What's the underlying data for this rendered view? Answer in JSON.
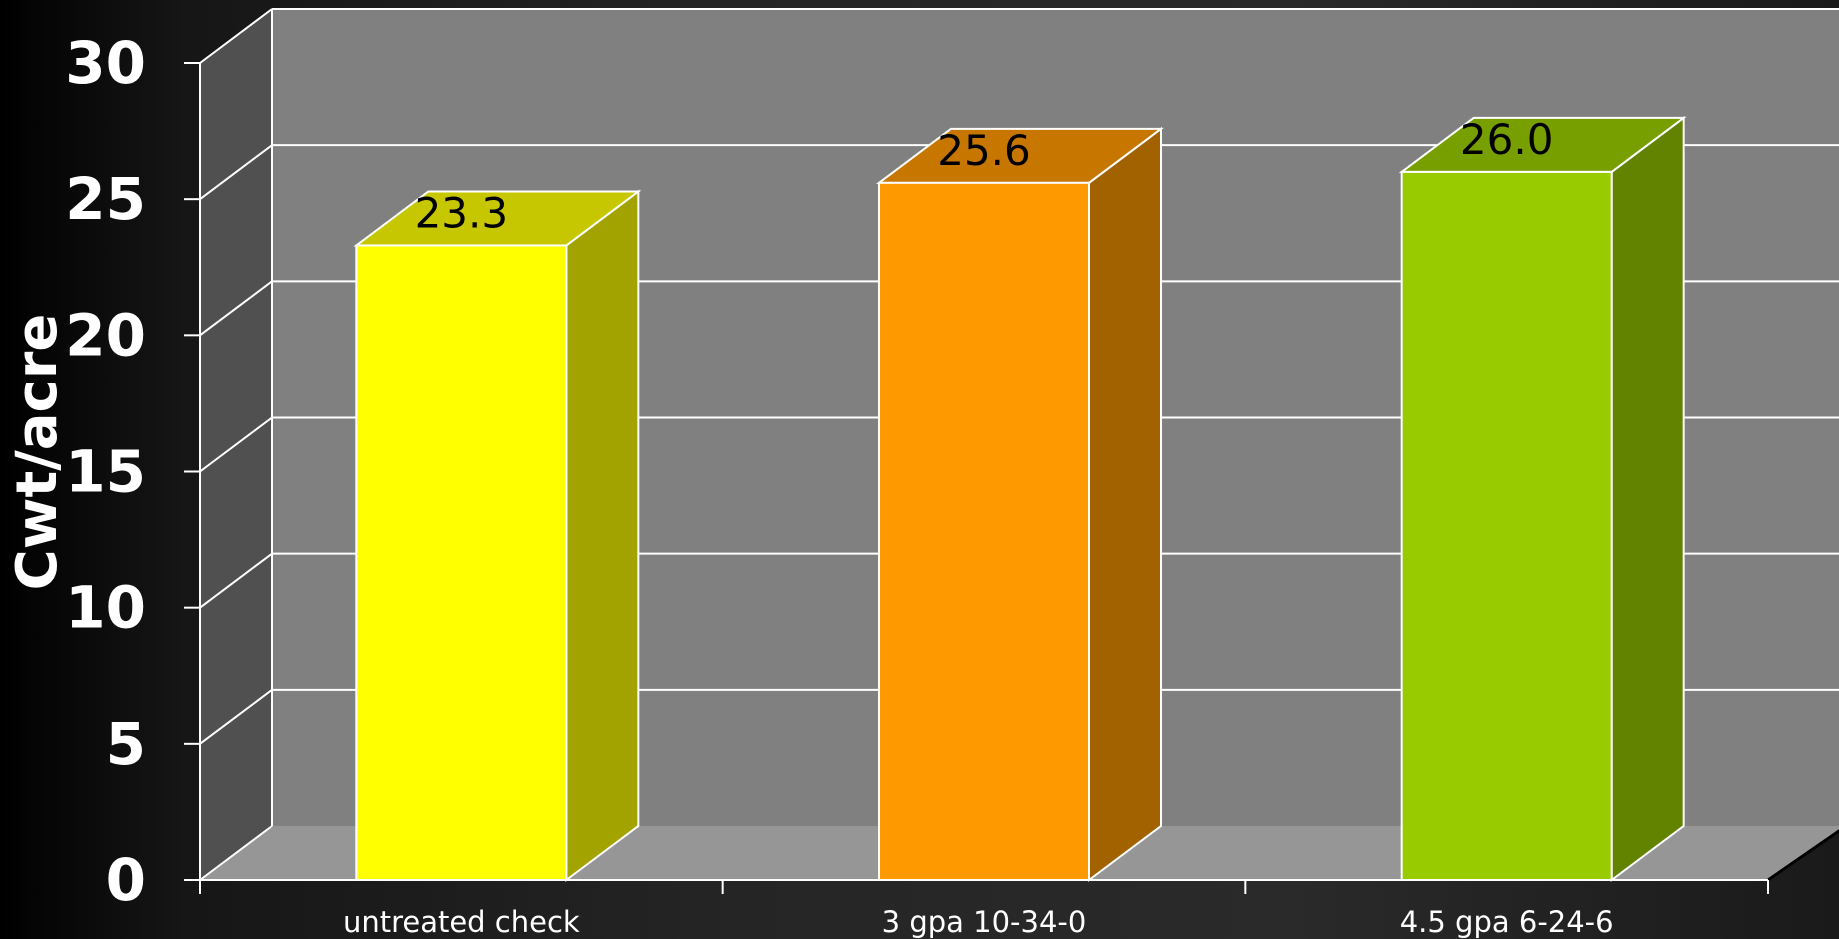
{
  "chart_data": {
    "type": "bar",
    "ylabel": "Cwt/acre",
    "xlabel": "",
    "ylim": [
      0,
      30
    ],
    "yticks": [
      "0",
      "5",
      "10",
      "15",
      "20",
      "25",
      "30"
    ],
    "categories": [
      "untreated check",
      "3 gpa 10-34-0",
      "4.5 gpa 6-24-6"
    ],
    "values": [
      23.3,
      25.6,
      26.0
    ],
    "value_labels": [
      "23.3",
      "25.6",
      "26.0"
    ],
    "bar_colors": [
      "#ffff00",
      "#ff9900",
      "#99cc00"
    ],
    "grid": true,
    "legend": "none",
    "style": "3d-column"
  }
}
